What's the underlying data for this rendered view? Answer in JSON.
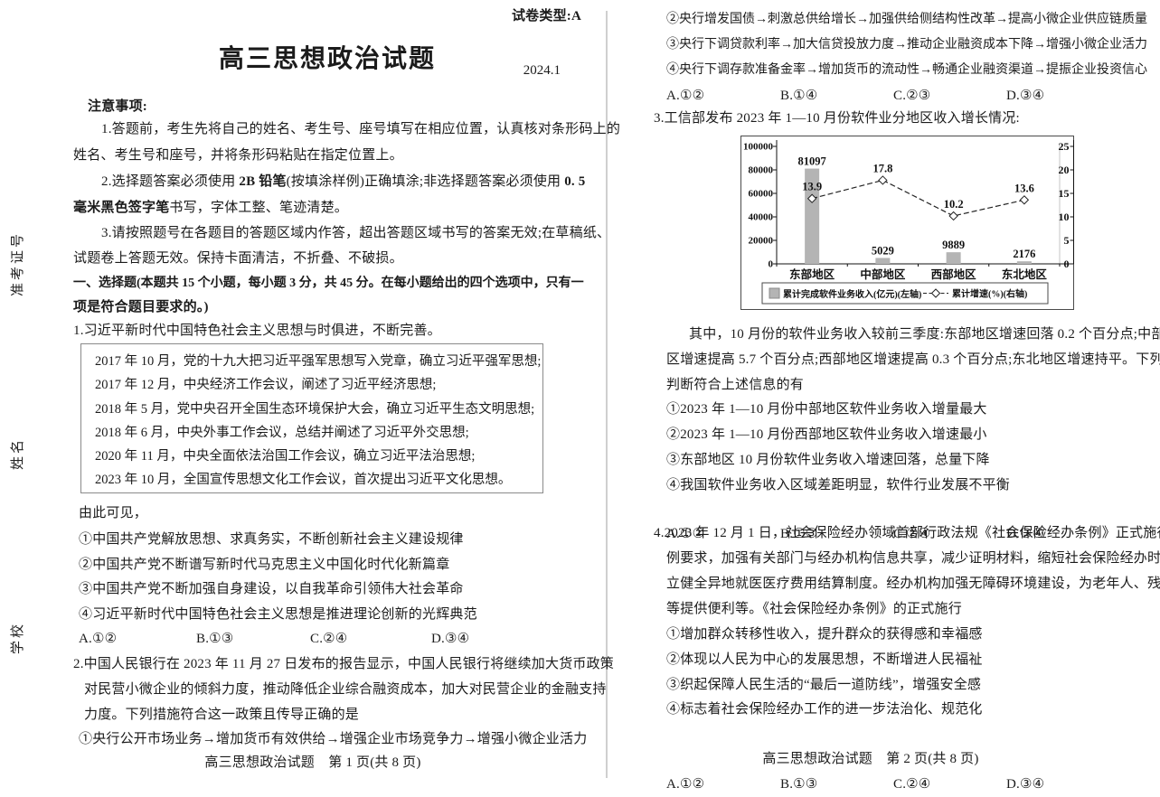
{
  "margin": {
    "labels": [
      "准考证号",
      "姓名",
      "学校"
    ]
  },
  "page1": {
    "paper_type": "试卷类型:A",
    "title": "高三思想政治试题",
    "date": "2024.1",
    "notice_title": "注意事项:",
    "note1a": "1.答题前，考生先将自己的姓名、考生号、座号填写在相应位置，认真核对条形码上的",
    "note1b": "姓名、考生号和座号，并将条形码粘贴在指定位置上。",
    "note2a_pre": "2.选择题答案必须使用 ",
    "note2a_b1": "2B 铅笔",
    "note2a_mid": "(按填涂样例)正确填涂;非选择题答案必须使用 ",
    "note2a_b2": "0. 5",
    "note2b_b": "毫米黑色签字笔",
    "note2b_rest": "书写，字体工整、笔迹清楚。",
    "note3a": "3.请按照题号在各题目的答题区域内作答，超出答题区域书写的答案无效;在草稿纸、",
    "note3b": "试题卷上答题无效。保持卡面清洁，不折叠、不破损。",
    "sec1": "一、选择题(本题共 15 个小题，每小题 3 分，共 45 分。在每小题给出的四个选项中，只有一",
    "sec2": "项是符合题目要求的。)",
    "q1_stem": "1.习近平新时代中国特色社会主义思想与时俱进，不断完善。",
    "q1_box": [
      "2017 年 10 月，党的十九大把习近平强军思想写入党章，确立习近平强军思想;",
      "2017 年 12 月，中央经济工作会议，阐述了习近平经济思想;",
      "2018 年 5 月，党中央召开全国生态环境保护大会，确立习近平生态文明思想;",
      "2018 年 6 月，中央外事工作会议，总结并阐述了习近平外交思想;",
      "2020 年 11 月，中央全面依法治国工作会议，确立习近平法治思想;",
      "2023 年 10 月，全国宣传思想文化工作会议，首次提出习近平文化思想。"
    ],
    "q1_lead": "由此可见，",
    "q1_opts": [
      "①中国共产党解放思想、求真务实，不断创新社会主义建设规律",
      "②中国共产党不断谱写新时代马克思主义中国化时代化新篇章",
      "③中国共产党不断加强自身建设，以自我革命引领伟大社会革命",
      "④习近平新时代中国特色社会主义思想是推进理论创新的光辉典范"
    ],
    "q1_ans": [
      "A.①②",
      "B.①③",
      "C.②④",
      "D.③④"
    ],
    "q2_stem1": "2.中国人民银行在 2023 年 11 月 27 日发布的报告显示，中国人民银行将继续加大货币政策",
    "q2_stem2": "对民营小微企业的倾斜力度，推动降低企业综合融资成本，加大对民营企业的金融支持",
    "q2_stem3": "力度。下列措施符合这一政策且传导正确的是",
    "q2_opt1": "①央行公开市场业务→增加货币有效供给→增强企业市场竞争力→增强小微企业活力",
    "footer": "高三思想政治试题　第 1 页(共 8 页)"
  },
  "page2": {
    "q2_opt2": "②央行增发国债→刺激总供给增长→加强供给侧结构性改革→提高小微企业供应链质量",
    "q2_opt3": "③央行下调贷款利率→加大信贷投放力度→推动企业融资成本下降→增强小微企业活力",
    "q2_opt4": "④央行下调存款准备金率→增加货币的流动性→畅通企业融资渠道→提振企业投资信心",
    "q2_ans": [
      "A.①②",
      "B.①④",
      "C.②③",
      "D.③④"
    ],
    "q3_stem": "3.工信部发布 2023 年 1—10 月份软件业分地区收入增长情况:",
    "q3_para1": "其中，10 月份的软件业务收入较前三季度:东部地区增速回落 0.2 个百分点;中部地",
    "q3_para2": "区增速提高 5.7 个百分点;西部地区增速提高 0.3 个百分点;东北地区增速持平。下列",
    "q3_para3": "判断符合上述信息的有",
    "q3_opts": [
      "①2023 年 1—10 月份中部地区软件业务收入增量最大",
      "②2023 年 1—10 月份西部地区软件业务收入增速最小",
      "③东部地区 10 月份软件业务收入增速回落，总量下降",
      "④我国软件业务收入区域差距明显，软件行业发展不平衡"
    ],
    "q3_ans": [
      "A.①②",
      "B.①③",
      "C.②④",
      "D.③④"
    ],
    "q4_stem1": "4.2023 年 12 月 1 日，社会保险经办领域首部行政法规《社会保险经办条例》正式施行。条",
    "q4_stem2": "例要求，加强有关部门与经办机构信息共享，减少证明材料，缩短社会保险经办时限，建",
    "q4_stem3": "立健全异地就医医疗费用结算制度。经办机构加强无障碍环境建设，为老年人、残疾人",
    "q4_stem4": "等提供便利等。《社会保险经办条例》的正式施行",
    "q4_opts": [
      "①增加群众转移性收入，提升群众的获得感和幸福感",
      "②体现以人民为中心的发展思想，不断增进人民福祉",
      "③织起保障人民生活的“最后一道防线”，增强安全感",
      "④标志着社会保险经办工作的进一步法治化、规范化"
    ],
    "q4_ans": [
      "A.①②",
      "B.①③",
      "C.②④",
      "D.③④"
    ],
    "footer": "高三思想政治试题　第 2 页(共 8 页)"
  },
  "chart_data": {
    "type": "combo",
    "categories": [
      "东部地区",
      "中部地区",
      "西部地区",
      "东北地区"
    ],
    "series": [
      {
        "name": "累计完成软件业务收入(亿元)(左轴)",
        "type": "bar",
        "axis": "left",
        "values": [
          81097,
          5029,
          9889,
          2176
        ],
        "color": "#b4b4b4"
      },
      {
        "name": "累计增速(%)(右轴)",
        "type": "line",
        "axis": "right",
        "values": [
          13.9,
          17.8,
          10.2,
          13.6
        ],
        "color": "#222222",
        "line_style": "dashed",
        "marker": "open-diamond"
      }
    ],
    "left_axis": {
      "ticks": [
        0,
        20000,
        40000,
        60000,
        80000,
        100000
      ],
      "range": [
        0,
        100000
      ]
    },
    "right_axis": {
      "ticks": [
        0,
        5,
        10,
        15,
        20,
        25
      ],
      "range": [
        0,
        25
      ]
    },
    "grid": false,
    "legend_position": "bottom",
    "title": ""
  }
}
